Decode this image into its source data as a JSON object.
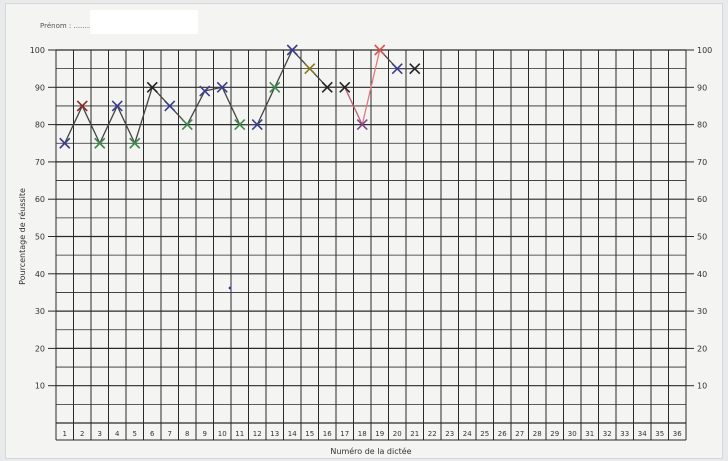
{
  "header": {
    "name_label": "Prénom : ..............................",
    "name_redacted": true
  },
  "chart_data": {
    "type": "line",
    "title": "",
    "xlabel": "Numéro de la dictée",
    "ylabel": "Pourcentage de réussite",
    "x_categories": [
      "1",
      "2",
      "3",
      "4",
      "5",
      "6",
      "7",
      "8",
      "9",
      "10",
      "11",
      "12",
      "13",
      "14",
      "15",
      "16",
      "17",
      "18",
      "19",
      "20",
      "21",
      "22",
      "23",
      "24",
      "25",
      "26",
      "27",
      "28",
      "29",
      "30",
      "31",
      "32",
      "33",
      "34",
      "35",
      "36"
    ],
    "y_ticks_left": [
      "10",
      "20",
      "30",
      "40",
      "50",
      "60",
      "70",
      "80",
      "90",
      "100"
    ],
    "y_ticks_right": [
      "10",
      "20",
      "30",
      "40",
      "50",
      "60",
      "70",
      "80",
      "90",
      "100"
    ],
    "ylim": [
      0,
      100
    ],
    "grid": true,
    "series": [
      {
        "x": [
          1,
          2,
          3,
          4,
          5,
          6,
          7,
          8,
          9,
          10,
          11,
          12,
          13,
          14,
          15,
          16,
          17,
          18,
          19,
          20,
          21
        ],
        "values": [
          75,
          85,
          75,
          85,
          75,
          90,
          85,
          80,
          89,
          90,
          80,
          80,
          90,
          100,
          95,
          90,
          90,
          80,
          100,
          95,
          95
        ],
        "marker_colors": [
          "#3a3d8f",
          "#8b2a2a",
          "#3d8a4a",
          "#3a3d8f",
          "#3d8a4a",
          "#222222",
          "#3a3d8f",
          "#3d8a4a",
          "#3a3d8f",
          "#3a3d8f",
          "#3d8a4a",
          "#3a3d8f",
          "#3d8a4a",
          "#3a3d8f",
          "#8a7a1a",
          "#222222",
          "#222222",
          "#7a4a8f",
          "#d9534f",
          "#3a3d8f",
          "#222222"
        ],
        "segment_colors": [
          "#444444",
          "#444444",
          "#444444",
          "#444444",
          "#444444",
          "#444444",
          "#444444",
          "#444444",
          "#444444",
          "#444444",
          "#444444",
          "#444444",
          "#444444",
          "#444444",
          "#444444",
          "#444444",
          "#c06070",
          "#e07a80",
          "#444444",
          "#444444"
        ]
      }
    ]
  }
}
